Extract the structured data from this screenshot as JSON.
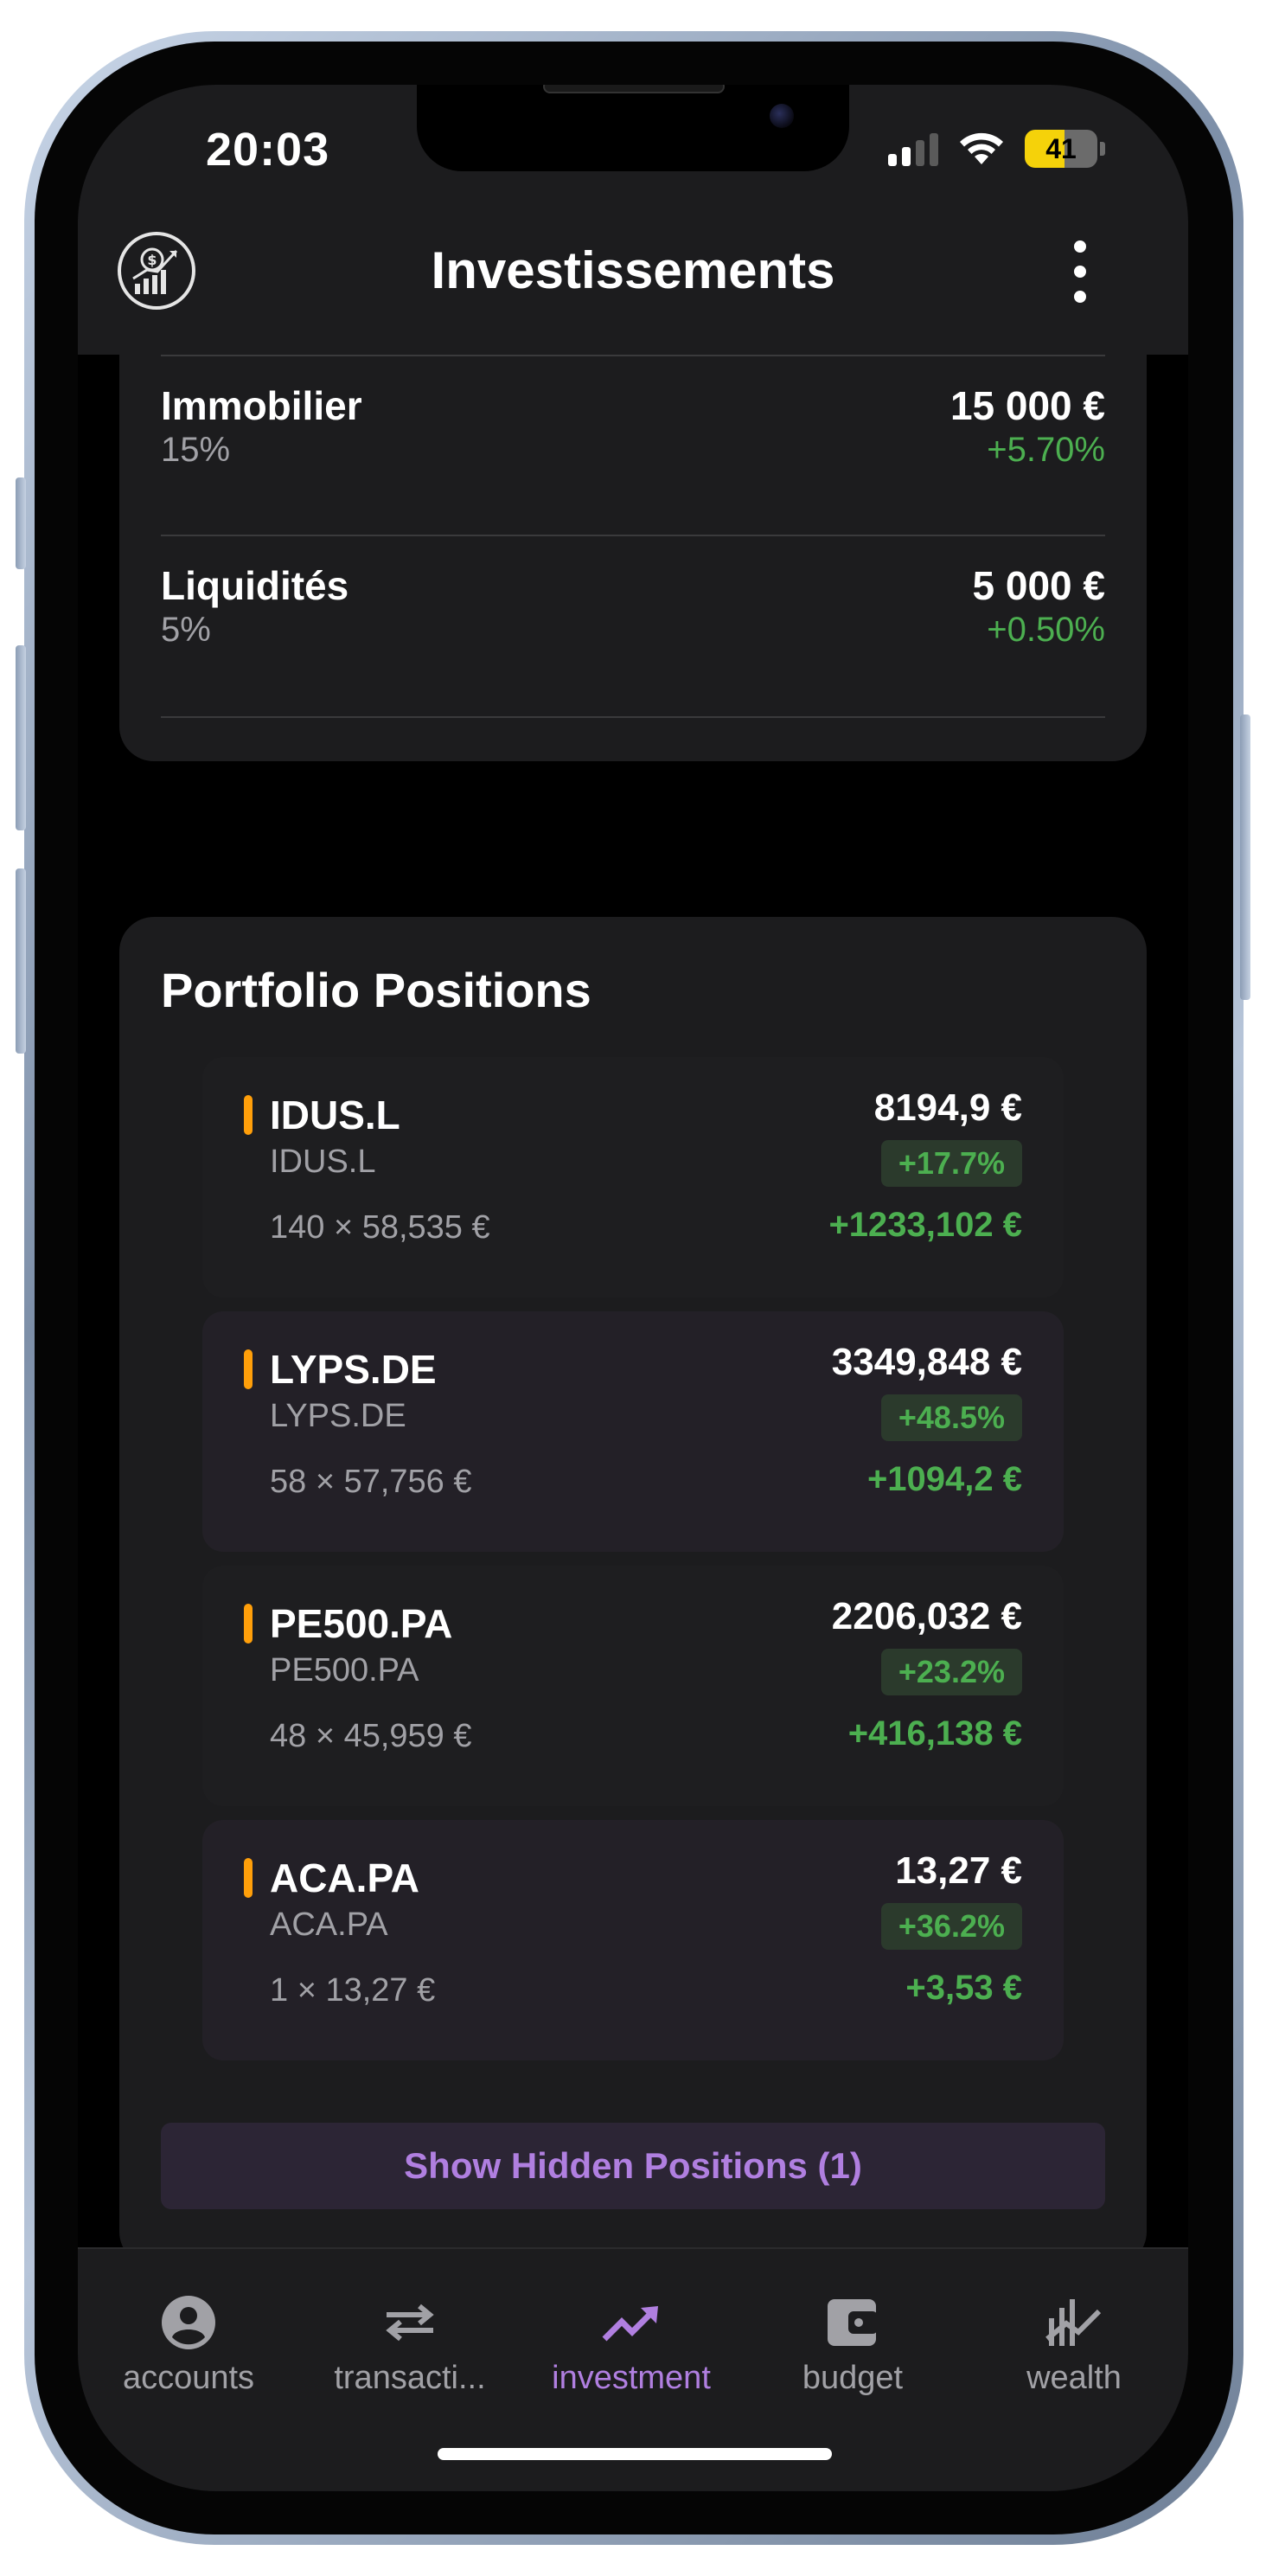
{
  "status_bar": {
    "time": "20:03",
    "battery": "41"
  },
  "header": {
    "title": "Investissements"
  },
  "allocations": [
    {
      "name": "Immobilier",
      "percent": "15%",
      "value": "15 000 €",
      "change": "+5.70%"
    },
    {
      "name": "Liquidités",
      "percent": "5%",
      "value": "5 000 €",
      "change": "+0.50%"
    }
  ],
  "portfolio": {
    "title": "Portfolio Positions",
    "positions": [
      {
        "symbol": "IDUS.L",
        "subtitle": "IDUS.L",
        "quantity": "140 × 58,535 €",
        "value": "8194,9 €",
        "change_pct": "+17.7%",
        "gain": "+1233,102 €"
      },
      {
        "symbol": "LYPS.DE",
        "subtitle": "LYPS.DE",
        "quantity": "58 × 57,756 €",
        "value": "3349,848 €",
        "change_pct": "+48.5%",
        "gain": "+1094,2 €"
      },
      {
        "symbol": "PE500.PA",
        "subtitle": "PE500.PA",
        "quantity": "48 × 45,959 €",
        "value": "2206,032 €",
        "change_pct": "+23.2%",
        "gain": "+416,138 €"
      },
      {
        "symbol": "ACA.PA",
        "subtitle": "ACA.PA",
        "quantity": "1 × 13,27 €",
        "value": "13,27 €",
        "change_pct": "+36.2%",
        "gain": "+3,53 €"
      }
    ],
    "show_hidden_label": "Show Hidden Positions (1)"
  },
  "tabs": [
    {
      "label": "accounts",
      "icon": "account-circle-icon"
    },
    {
      "label": "transacti...",
      "icon": "swap-arrows-icon"
    },
    {
      "label": "investment",
      "icon": "trending-up-icon",
      "active": true
    },
    {
      "label": "budget",
      "icon": "wallet-icon"
    },
    {
      "label": "wealth",
      "icon": "wealth-chart-icon"
    }
  ],
  "colors": {
    "accent": "#b07fe0",
    "positive": "#4caf50",
    "position_marker": "#ff9f0a",
    "background": "#000000",
    "card": "#1c1c1e"
  }
}
